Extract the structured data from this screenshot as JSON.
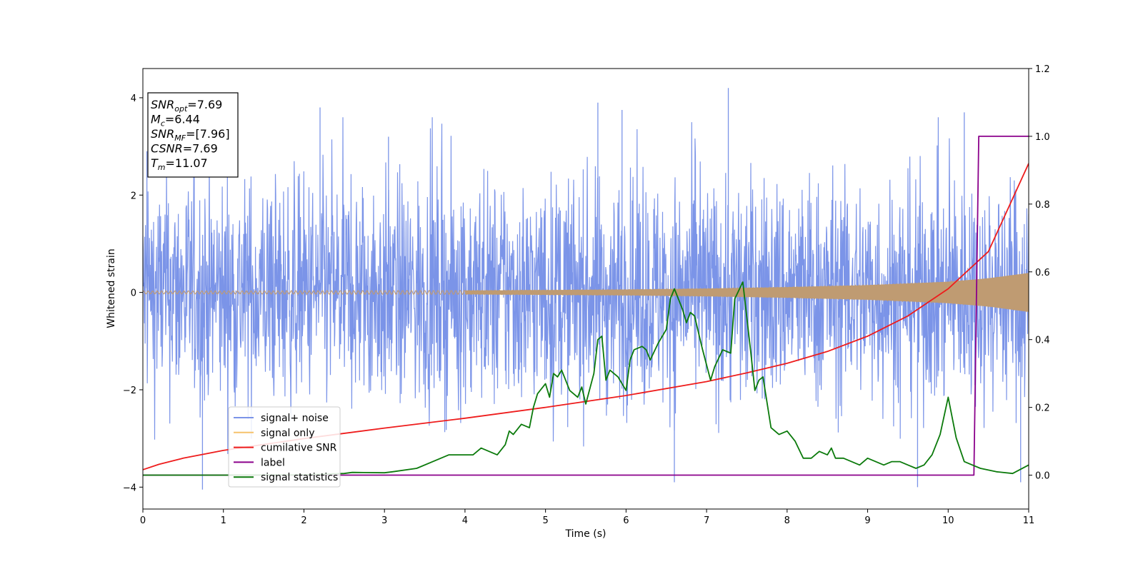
{
  "chart_data": {
    "type": "line",
    "xlabel": "Time (s)",
    "ylabel": "Whitened strain",
    "xlim": [
      0,
      11
    ],
    "ylim_left": [
      -4.45,
      4.6
    ],
    "ylim_right": [
      -0.1,
      1.2
    ],
    "x_ticks": [
      0,
      1,
      2,
      3,
      4,
      5,
      6,
      7,
      8,
      9,
      10,
      11
    ],
    "y_left_ticks": [
      -4,
      -2,
      0,
      2,
      4
    ],
    "y_right_ticks": [
      0.0,
      0.2,
      0.4,
      0.6,
      0.8,
      1.0,
      1.2
    ],
    "x_tick_labels": [
      "0",
      "1",
      "2",
      "3",
      "4",
      "5",
      "6",
      "7",
      "8",
      "9",
      "10",
      "11"
    ],
    "y_left_tick_labels": [
      "−4",
      "−2",
      "0",
      "2",
      "4"
    ],
    "y_right_tick_labels": [
      "0.0",
      "0.2",
      "0.4",
      "0.6",
      "0.8",
      "1.0",
      "1.2"
    ],
    "grid": false,
    "legend_placement": "lower-left",
    "annotation": {
      "placement": "top-left",
      "lines": [
        {
          "main": "SNR",
          "sub": "opt",
          "rest": "=7.69"
        },
        {
          "main": "M",
          "sub": "c",
          "rest": "=6.44"
        },
        {
          "main": "SNR",
          "sub": "MF",
          "rest": "=[7.96]"
        },
        {
          "main": "CSNR",
          "sub": "",
          "rest": "=7.69"
        },
        {
          "main": "T",
          "sub": "m",
          "rest": "=11.07"
        }
      ]
    },
    "series": [
      {
        "name": "signal+ noise",
        "axis": "left",
        "color": "#7b94e8",
        "style": "noise-band",
        "typical_range": [
          -2.2,
          2.2
        ],
        "peak_spikes": [
          {
            "x": 0.05,
            "y": 2.9
          },
          {
            "x": 0.74,
            "y": -4.05
          },
          {
            "x": 2.2,
            "y": 3.8
          },
          {
            "x": 3.05,
            "y": 3.2
          },
          {
            "x": 5.65,
            "y": 3.9
          },
          {
            "x": 5.95,
            "y": 3.75
          },
          {
            "x": 6.6,
            "y": -3.9
          },
          {
            "x": 7.27,
            "y": 4.2
          },
          {
            "x": 9.62,
            "y": -4.0
          },
          {
            "x": 10.2,
            "y": 3.7
          },
          {
            "x": 10.9,
            "y": -3.9
          }
        ]
      },
      {
        "name": "signal only",
        "axis": "left",
        "color": "#f5c26b",
        "style": "chirp",
        "amplitude_envelope": {
          "x": [
            0,
            4,
            6,
            7,
            8,
            9,
            10,
            10.5,
            11
          ],
          "y": [
            0.03,
            0.04,
            0.06,
            0.08,
            0.11,
            0.15,
            0.22,
            0.29,
            0.4
          ]
        }
      },
      {
        "name": "cumilative SNR",
        "axis": "right",
        "color": "#ee1c1c",
        "x": [
          0,
          0.2,
          0.5,
          1,
          2,
          3,
          4,
          5,
          6,
          7,
          7.5,
          8,
          8.5,
          9,
          9.5,
          10,
          10.5,
          11
        ],
        "y": [
          0.016,
          0.032,
          0.05,
          0.073,
          0.108,
          0.139,
          0.168,
          0.2,
          0.235,
          0.276,
          0.302,
          0.33,
          0.365,
          0.41,
          0.47,
          0.55,
          0.66,
          0.92
        ]
      },
      {
        "name": "label",
        "axis": "right",
        "color": "#8b008b",
        "x": [
          0,
          10.32,
          10.38,
          11
        ],
        "y": [
          0,
          0,
          1,
          1
        ]
      },
      {
        "name": "signal statistics",
        "axis": "right",
        "color": "#0b7a0b",
        "x": [
          0,
          1,
          2,
          2.5,
          2.6,
          3,
          3.1,
          3.4,
          3.6,
          3.8,
          4,
          4.1,
          4.2,
          4.3,
          4.4,
          4.5,
          4.55,
          4.6,
          4.7,
          4.8,
          4.85,
          4.9,
          5,
          5.05,
          5.1,
          5.15,
          5.2,
          5.3,
          5.4,
          5.45,
          5.5,
          5.6,
          5.65,
          5.7,
          5.75,
          5.8,
          5.9,
          6,
          6.05,
          6.1,
          6.2,
          6.25,
          6.3,
          6.4,
          6.5,
          6.55,
          6.6,
          6.7,
          6.75,
          6.8,
          6.85,
          6.95,
          7.05,
          7.1,
          7.2,
          7.3,
          7.35,
          7.45,
          7.55,
          7.6,
          7.65,
          7.7,
          7.8,
          7.9,
          8.0,
          8.1,
          8.2,
          8.3,
          8.4,
          8.5,
          8.55,
          8.6,
          8.7,
          8.8,
          8.9,
          9.0,
          9.1,
          9.2,
          9.3,
          9.4,
          9.5,
          9.6,
          9.7,
          9.8,
          9.9,
          10.0,
          10.1,
          10.2,
          10.3,
          10.4,
          10.6,
          10.8,
          11.0
        ],
        "y": [
          0.0,
          0.0,
          0.001,
          0.005,
          0.008,
          0.007,
          0.01,
          0.02,
          0.04,
          0.06,
          0.06,
          0.06,
          0.08,
          0.07,
          0.06,
          0.09,
          0.13,
          0.12,
          0.15,
          0.14,
          0.2,
          0.24,
          0.27,
          0.23,
          0.3,
          0.29,
          0.31,
          0.25,
          0.23,
          0.26,
          0.21,
          0.3,
          0.4,
          0.41,
          0.28,
          0.31,
          0.29,
          0.25,
          0.34,
          0.37,
          0.38,
          0.37,
          0.34,
          0.39,
          0.43,
          0.52,
          0.55,
          0.49,
          0.45,
          0.48,
          0.47,
          0.37,
          0.28,
          0.32,
          0.37,
          0.36,
          0.52,
          0.57,
          0.36,
          0.25,
          0.28,
          0.29,
          0.14,
          0.12,
          0.13,
          0.1,
          0.05,
          0.05,
          0.07,
          0.06,
          0.08,
          0.05,
          0.05,
          0.04,
          0.03,
          0.05,
          0.04,
          0.03,
          0.04,
          0.04,
          0.03,
          0.02,
          0.03,
          0.06,
          0.12,
          0.23,
          0.11,
          0.04,
          0.03,
          0.02,
          0.01,
          0.005,
          0.03
        ]
      }
    ]
  }
}
